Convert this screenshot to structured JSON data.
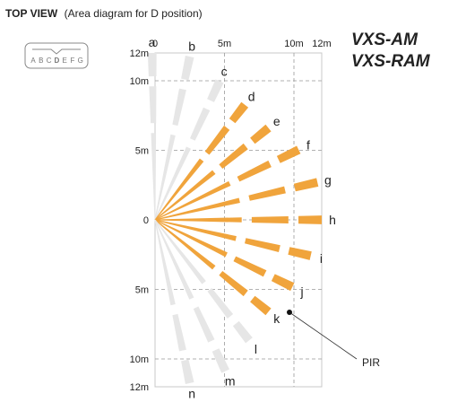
{
  "heading": {
    "bold": "TOP VIEW",
    "sub": "(Area diagram for D position)"
  },
  "models": [
    "VXS-AM",
    "VXS-RAM"
  ],
  "selector": {
    "letters": [
      "A",
      "B",
      "C",
      "D",
      "E",
      "F",
      "G"
    ],
    "selected": "D"
  },
  "axis": {
    "x_ticks": [
      {
        "m": 0,
        "label": "0"
      },
      {
        "m": 5,
        "label": "5m"
      },
      {
        "m": 10,
        "label": "10m"
      },
      {
        "m": 12,
        "label": "12m"
      }
    ],
    "y_ticks": [
      {
        "m": -12,
        "label": "12m"
      },
      {
        "m": -10,
        "label": "10m"
      },
      {
        "m": -5,
        "label": "5m"
      },
      {
        "m": 0,
        "label": "0"
      },
      {
        "m": 5,
        "label": "5m"
      },
      {
        "m": 10,
        "label": "10m"
      },
      {
        "m": 12,
        "label": "12m"
      }
    ]
  },
  "zones": [
    {
      "id": "a",
      "angle": -91,
      "reach": 12,
      "active": false
    },
    {
      "id": "b",
      "angle": -78,
      "reach": 12,
      "active": false
    },
    {
      "id": "c",
      "angle": -65,
      "reach": 11,
      "active": false
    },
    {
      "id": "d",
      "angle": -52,
      "reach": 10.5,
      "active": true
    },
    {
      "id": "e",
      "angle": -39,
      "reach": 10.5,
      "active": true
    },
    {
      "id": "f",
      "angle": -26,
      "reach": 11.5,
      "active": true
    },
    {
      "id": "g",
      "angle": -13,
      "reach": 12,
      "active": true
    },
    {
      "id": "h",
      "angle": 0,
      "reach": 12,
      "active": true
    },
    {
      "id": "i",
      "angle": 13,
      "reach": 11.5,
      "active": true
    },
    {
      "id": "j",
      "angle": 26,
      "reach": 11,
      "active": true
    },
    {
      "id": "k",
      "angle": 39,
      "reach": 10.5,
      "active": true
    },
    {
      "id": "l",
      "angle": 52,
      "reach": 11,
      "active": false
    },
    {
      "id": "m",
      "angle": 65,
      "reach": 12,
      "active": false
    },
    {
      "id": "n",
      "angle": 78,
      "reach": 12,
      "active": false
    }
  ],
  "pir": {
    "label": "PIR"
  },
  "colors": {
    "active": "#f0a43c",
    "inactive": "#e6e6e6",
    "grid": "#999999",
    "frame": "#c8c8c8"
  }
}
